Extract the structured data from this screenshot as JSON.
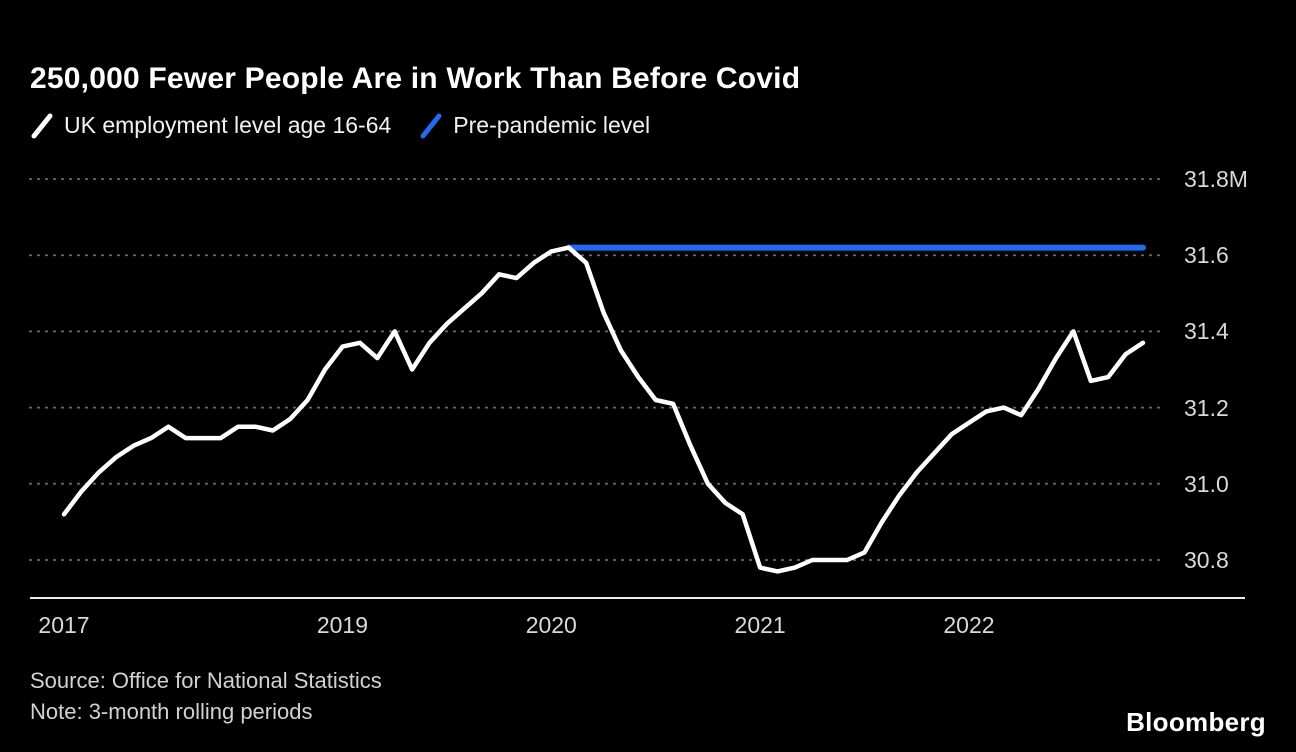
{
  "title": "250,000 Fewer People Are in Work Than Before Covid",
  "legend": [
    {
      "label": "UK employment level age 16-64",
      "color": "#ffffff"
    },
    {
      "label": "Pre-pandemic level",
      "color": "#1f6bf2"
    }
  ],
  "source": "Source: Office for National Statistics",
  "note": "Note: 3-month rolling periods",
  "logo": "Bloomberg",
  "colors": {
    "background": "#000000",
    "grid": "#6e6e6e",
    "axis": "#ededed",
    "label_text": "#d9d9d9",
    "employment_line": "#ffffff",
    "pre_pandemic_line": "#1f6bf2"
  },
  "chart_data": {
    "type": "line",
    "title": "250,000 Fewer People Are in Work Than Before Covid",
    "ylabel": "UK employment level age 16-64 (millions)",
    "xlabel": "",
    "ylim": [
      30.7,
      31.85
    ],
    "grid": "dotted horizontal",
    "legend_position": "top-left",
    "x": [
      "2017-09",
      "2017-10",
      "2017-11",
      "2017-12",
      "2018-01",
      "2018-02",
      "2018-03",
      "2018-04",
      "2018-05",
      "2018-06",
      "2018-07",
      "2018-08",
      "2018-09",
      "2018-10",
      "2018-11",
      "2018-12",
      "2019-01",
      "2019-02",
      "2019-03",
      "2019-04",
      "2019-05",
      "2019-06",
      "2019-07",
      "2019-08",
      "2019-09",
      "2019-10",
      "2019-11",
      "2019-12",
      "2020-01",
      "2020-02",
      "2020-03",
      "2020-04",
      "2020-05",
      "2020-06",
      "2020-07",
      "2020-08",
      "2020-09",
      "2020-10",
      "2020-11",
      "2020-12",
      "2021-01",
      "2021-02",
      "2021-03",
      "2021-04",
      "2021-05",
      "2021-06",
      "2021-07",
      "2021-08",
      "2021-09",
      "2021-10",
      "2021-11",
      "2021-12",
      "2022-01",
      "2022-02",
      "2022-03",
      "2022-04",
      "2022-05",
      "2022-06",
      "2022-07",
      "2022-08",
      "2022-09",
      "2022-10",
      "2022-11"
    ],
    "series": [
      {
        "name": "UK employment level age 16-64",
        "color": "#ffffff",
        "unit": "millions",
        "values": [
          30.92,
          30.98,
          31.03,
          31.07,
          31.1,
          31.12,
          31.15,
          31.12,
          31.12,
          31.12,
          31.15,
          31.15,
          31.14,
          31.17,
          31.22,
          31.3,
          31.36,
          31.37,
          31.33,
          31.4,
          31.3,
          31.37,
          31.42,
          31.46,
          31.5,
          31.55,
          31.54,
          31.58,
          31.61,
          31.62,
          31.58,
          31.45,
          31.35,
          31.28,
          31.22,
          31.21,
          31.1,
          31.0,
          30.95,
          30.92,
          30.78,
          30.77,
          30.78,
          30.8,
          30.8,
          30.8,
          30.82,
          30.9,
          30.97,
          31.03,
          31.08,
          31.13,
          31.16,
          31.19,
          31.2,
          31.18,
          31.25,
          31.33,
          31.4,
          31.27,
          31.28,
          31.34,
          31.37
        ]
      },
      {
        "name": "Pre-pandemic level",
        "type": "reference-line",
        "color": "#1f6bf2",
        "value": 31.62,
        "from": "2020-02",
        "to": "2022-11"
      }
    ],
    "yticks": [
      {
        "value": 31.8,
        "label": "31.8M"
      },
      {
        "value": 31.6,
        "label": "31.6"
      },
      {
        "value": 31.4,
        "label": "31.4"
      },
      {
        "value": 31.2,
        "label": "31.2"
      },
      {
        "value": 31.0,
        "label": "31.0"
      },
      {
        "value": 30.8,
        "label": "30.8"
      }
    ],
    "xticks": [
      {
        "label": "2017",
        "month": "2017-09"
      },
      {
        "label": "2019",
        "month": "2019-01"
      },
      {
        "label": "2020",
        "month": "2020-01"
      },
      {
        "label": "2021",
        "month": "2021-01"
      },
      {
        "label": "2022",
        "month": "2022-01"
      }
    ]
  }
}
